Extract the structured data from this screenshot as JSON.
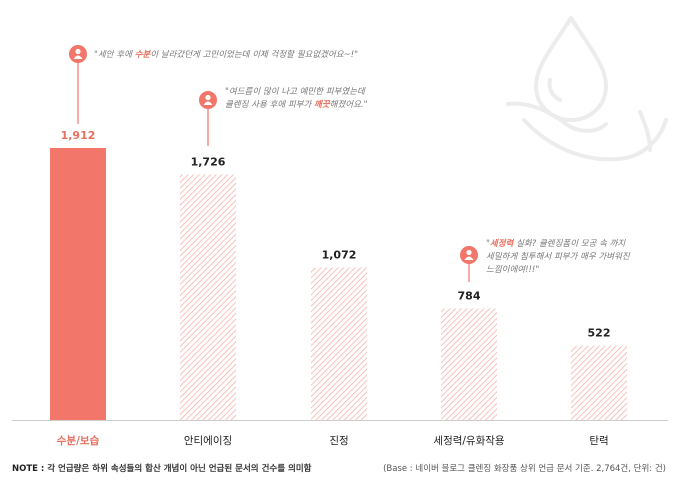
{
  "chart_data": {
    "type": "bar",
    "categories": [
      "수분/보습",
      "안티에이징",
      "진정",
      "세정력/유화작용",
      "탄력"
    ],
    "values": [
      1912,
      1726,
      1072,
      784,
      522
    ],
    "value_labels": [
      "1,912",
      "1,726",
      "1,072",
      "784",
      "522"
    ],
    "highlight_index": 0,
    "ylim": [
      0,
      1912
    ],
    "grid": false,
    "colors": {
      "highlight": "#f2766a",
      "hatch": "#f4b3ab",
      "highlight_label": "#e8705f",
      "label": "#222222",
      "baseline": "#cccccc"
    }
  },
  "quotes": [
    {
      "icon": "user-icon",
      "lines": [
        [
          {
            "t": "\"세안 후에 ",
            "b": false
          },
          {
            "t": "수분",
            "b": true
          },
          {
            "t": "이 날라갔던게 고민이었는데 이제 걱정할 필요없겠어요~!\"",
            "b": false
          }
        ]
      ]
    },
    {
      "icon": "user-icon",
      "lines": [
        [
          {
            "t": "\"여드름이 많이 나고 예민한 피부였는데",
            "b": false
          }
        ],
        [
          {
            "t": "클렌징 사용 후에 피부가 ",
            "b": false
          },
          {
            "t": "깨끗",
            "b": true
          },
          {
            "t": "해졌어요.\"",
            "b": false
          }
        ]
      ]
    },
    {
      "icon": "user-icon",
      "lines": [
        [
          {
            "t": "\"",
            "b": false
          },
          {
            "t": "세정력",
            "b": true
          },
          {
            "t": " 실화? 클렌징폼이 모공 속 까지",
            "b": false
          }
        ],
        [
          {
            "t": "세밀하게 침투해서 피부가 매우 가벼워진",
            "b": false
          }
        ],
        [
          {
            "t": "느낌이에여!!!\"",
            "b": false
          }
        ]
      ]
    }
  ],
  "decoration": {
    "icon": "water-drop-hand-icon"
  },
  "footer": {
    "note_label": "NOTE : ",
    "note_text": "각 언급량은 하위 속성들의 합산 개념이 아닌 언급된 문서의 건수를 의미함",
    "base_text": "(Base : 네이버 블로그 클렌징 화장품 상위 언급 문서 기준. 2,764건, 단위: 건)"
  }
}
